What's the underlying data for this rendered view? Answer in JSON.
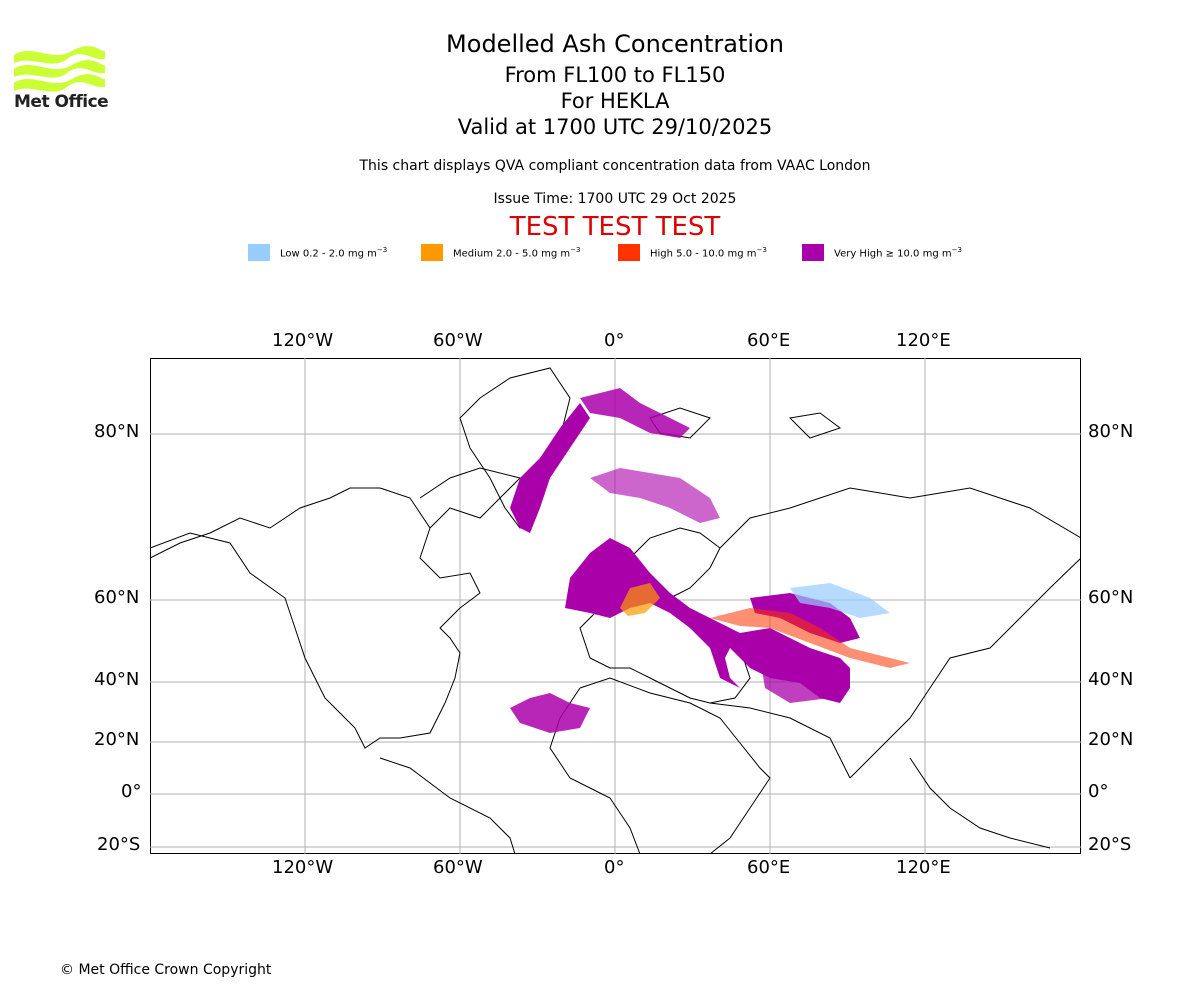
{
  "logo": {
    "text": "Met Office",
    "color": "#ccff33"
  },
  "title": {
    "main": "Modelled Ash Concentration",
    "levels": "From FL100 to FL150",
    "volcano": "For HEKLA",
    "valid": "Valid at 1700 UTC 29/10/2025"
  },
  "subtitle": {
    "info": "This chart displays QVA compliant concentration data from VAAC London",
    "issue_time": "Issue Time: 1700 UTC 29 Oct 2025",
    "test_banner": "TEST TEST TEST",
    "test_color": "#dd0000"
  },
  "legend": [
    {
      "label": "Low 0.2 - 2.0 mg m",
      "color": "#99ccff"
    },
    {
      "label": "Medium 2.0 - 5.0 mg m",
      "color": "#ff9900"
    },
    {
      "label": "High 5.0 - 10.0 mg m",
      "color": "#ff3300"
    },
    {
      "label": "Very High  ≥  10.0 mg m",
      "color": "#aa00aa"
    }
  ],
  "legend_unit_sup": "−3",
  "map": {
    "lon_labels": [
      "120°W",
      "60°W",
      "0°",
      "60°E",
      "120°E"
    ],
    "lat_labels": [
      "80°N",
      "60°N",
      "40°N",
      "20°N",
      "0°",
      "20°S"
    ],
    "lon_values": [
      -120,
      -60,
      0,
      60,
      120
    ],
    "lat_values": [
      80,
      60,
      40,
      20,
      0,
      -20
    ]
  },
  "footer": {
    "copyright": "© Met Office Crown Copyright"
  }
}
